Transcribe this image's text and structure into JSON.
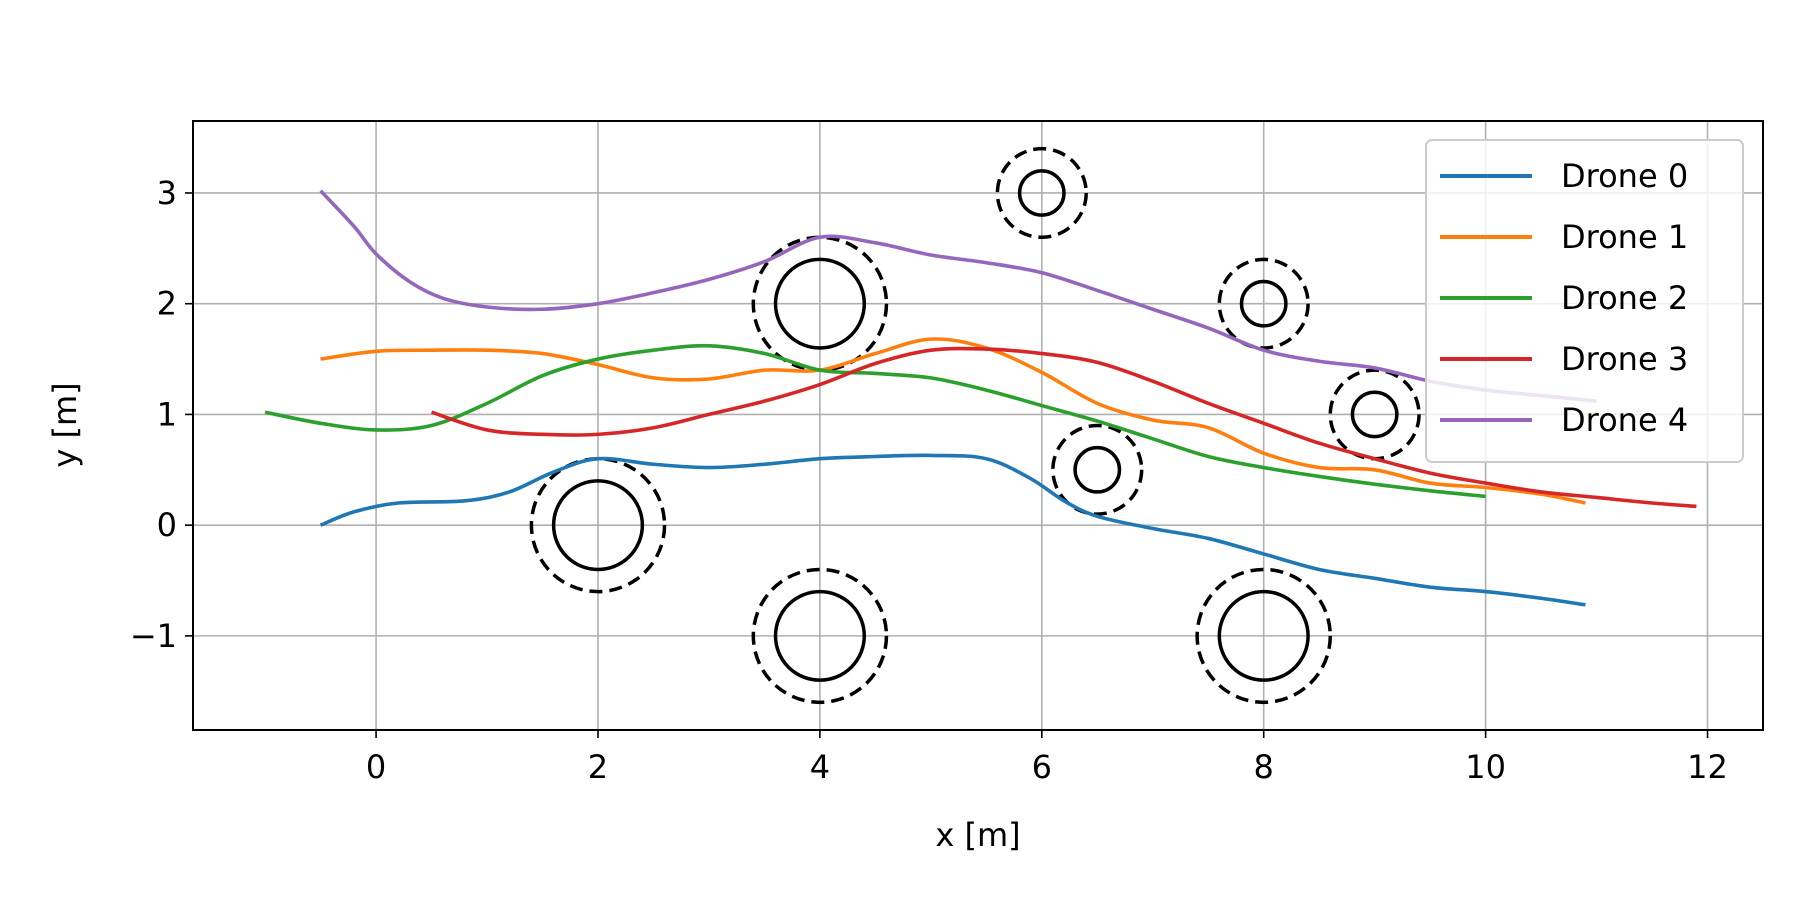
{
  "chart_data": {
    "type": "line",
    "title": "",
    "xlabel": "x [m]",
    "ylabel": "y [m]",
    "xlim": [
      -1.65,
      12.5
    ],
    "ylim": [
      -1.85,
      3.65
    ],
    "xticks": [
      0,
      2,
      4,
      6,
      8,
      10,
      12
    ],
    "xtick_labels": [
      "0",
      "2",
      "4",
      "6",
      "8",
      "10",
      "12"
    ],
    "yticks": [
      -1,
      0,
      1,
      2,
      3
    ],
    "ytick_labels": [
      "−1",
      "0",
      "1",
      "2",
      "3"
    ],
    "grid": true,
    "legend_position": "top-right",
    "series": [
      {
        "name": "Drone 0",
        "color": "#1f77b4",
        "points": [
          [
            -0.5,
            0.0
          ],
          [
            -0.2,
            0.12
          ],
          [
            0.2,
            0.2
          ],
          [
            0.8,
            0.22
          ],
          [
            1.2,
            0.3
          ],
          [
            1.6,
            0.48
          ],
          [
            2.0,
            0.6
          ],
          [
            2.5,
            0.55
          ],
          [
            3.0,
            0.52
          ],
          [
            3.5,
            0.55
          ],
          [
            4.0,
            0.6
          ],
          [
            4.5,
            0.62
          ],
          [
            5.0,
            0.63
          ],
          [
            5.5,
            0.6
          ],
          [
            5.9,
            0.42
          ],
          [
            6.2,
            0.22
          ],
          [
            6.5,
            0.08
          ],
          [
            7.0,
            -0.03
          ],
          [
            7.5,
            -0.12
          ],
          [
            8.0,
            -0.26
          ],
          [
            8.5,
            -0.4
          ],
          [
            9.0,
            -0.48
          ],
          [
            9.5,
            -0.56
          ],
          [
            10.0,
            -0.6
          ],
          [
            10.5,
            -0.66
          ],
          [
            10.9,
            -0.72
          ]
        ]
      },
      {
        "name": "Drone 1",
        "color": "#ff7f0e",
        "points": [
          [
            -0.5,
            1.5
          ],
          [
            0.0,
            1.57
          ],
          [
            0.5,
            1.58
          ],
          [
            1.0,
            1.58
          ],
          [
            1.5,
            1.55
          ],
          [
            2.0,
            1.45
          ],
          [
            2.5,
            1.33
          ],
          [
            3.0,
            1.32
          ],
          [
            3.5,
            1.4
          ],
          [
            4.0,
            1.4
          ],
          [
            4.5,
            1.55
          ],
          [
            5.0,
            1.68
          ],
          [
            5.5,
            1.6
          ],
          [
            6.0,
            1.38
          ],
          [
            6.5,
            1.1
          ],
          [
            7.0,
            0.95
          ],
          [
            7.5,
            0.88
          ],
          [
            8.0,
            0.65
          ],
          [
            8.5,
            0.52
          ],
          [
            9.0,
            0.5
          ],
          [
            9.5,
            0.38
          ],
          [
            10.0,
            0.34
          ],
          [
            10.5,
            0.28
          ],
          [
            10.9,
            0.2
          ]
        ]
      },
      {
        "name": "Drone 2",
        "color": "#2ca02c",
        "points": [
          [
            -1.0,
            1.02
          ],
          [
            -0.5,
            0.92
          ],
          [
            0.0,
            0.86
          ],
          [
            0.5,
            0.9
          ],
          [
            1.0,
            1.1
          ],
          [
            1.5,
            1.35
          ],
          [
            2.0,
            1.5
          ],
          [
            2.5,
            1.58
          ],
          [
            3.0,
            1.62
          ],
          [
            3.5,
            1.55
          ],
          [
            4.0,
            1.4
          ],
          [
            4.5,
            1.37
          ],
          [
            5.0,
            1.33
          ],
          [
            5.5,
            1.22
          ],
          [
            6.0,
            1.08
          ],
          [
            6.5,
            0.94
          ],
          [
            7.0,
            0.78
          ],
          [
            7.5,
            0.62
          ],
          [
            8.0,
            0.52
          ],
          [
            8.5,
            0.44
          ],
          [
            9.0,
            0.37
          ],
          [
            9.5,
            0.31
          ],
          [
            10.0,
            0.26
          ]
        ]
      },
      {
        "name": "Drone 3",
        "color": "#d62728",
        "points": [
          [
            0.5,
            1.02
          ],
          [
            1.0,
            0.86
          ],
          [
            1.5,
            0.82
          ],
          [
            2.0,
            0.82
          ],
          [
            2.5,
            0.88
          ],
          [
            3.0,
            1.0
          ],
          [
            3.5,
            1.12
          ],
          [
            4.0,
            1.27
          ],
          [
            4.5,
            1.46
          ],
          [
            5.0,
            1.58
          ],
          [
            5.5,
            1.59
          ],
          [
            6.0,
            1.55
          ],
          [
            6.5,
            1.47
          ],
          [
            7.0,
            1.3
          ],
          [
            7.5,
            1.1
          ],
          [
            8.0,
            0.92
          ],
          [
            8.5,
            0.74
          ],
          [
            9.0,
            0.6
          ],
          [
            9.5,
            0.47
          ],
          [
            10.0,
            0.38
          ],
          [
            10.5,
            0.3
          ],
          [
            11.0,
            0.25
          ],
          [
            11.5,
            0.2
          ],
          [
            11.9,
            0.17
          ]
        ]
      },
      {
        "name": "Drone 4",
        "color": "#9467bd",
        "points": [
          [
            -0.5,
            3.02
          ],
          [
            -0.2,
            2.7
          ],
          [
            0.0,
            2.45
          ],
          [
            0.3,
            2.2
          ],
          [
            0.6,
            2.05
          ],
          [
            1.0,
            1.97
          ],
          [
            1.5,
            1.95
          ],
          [
            2.0,
            2.0
          ],
          [
            2.5,
            2.1
          ],
          [
            3.0,
            2.22
          ],
          [
            3.5,
            2.38
          ],
          [
            4.0,
            2.6
          ],
          [
            4.5,
            2.55
          ],
          [
            5.0,
            2.44
          ],
          [
            5.5,
            2.37
          ],
          [
            6.0,
            2.28
          ],
          [
            6.5,
            2.12
          ],
          [
            7.0,
            1.95
          ],
          [
            7.5,
            1.78
          ],
          [
            8.0,
            1.58
          ],
          [
            8.5,
            1.48
          ],
          [
            9.0,
            1.42
          ],
          [
            9.5,
            1.3
          ],
          [
            10.0,
            1.22
          ],
          [
            10.5,
            1.17
          ],
          [
            11.0,
            1.12
          ]
        ]
      }
    ],
    "obstacles": [
      {
        "x": 2.0,
        "y": 0.0,
        "radius": 0.4,
        "safety_radius": 0.6
      },
      {
        "x": 4.0,
        "y": 2.0,
        "radius": 0.4,
        "safety_radius": 0.6
      },
      {
        "x": 4.0,
        "y": -1.0,
        "radius": 0.4,
        "safety_radius": 0.6
      },
      {
        "x": 6.0,
        "y": 3.0,
        "radius": 0.2,
        "safety_radius": 0.4
      },
      {
        "x": 6.5,
        "y": 0.5,
        "radius": 0.2,
        "safety_radius": 0.4
      },
      {
        "x": 8.0,
        "y": 2.0,
        "radius": 0.2,
        "safety_radius": 0.4
      },
      {
        "x": 8.0,
        "y": -1.0,
        "radius": 0.4,
        "safety_radius": 0.6
      },
      {
        "x": 9.0,
        "y": 1.0,
        "radius": 0.2,
        "safety_radius": 0.4
      }
    ]
  }
}
